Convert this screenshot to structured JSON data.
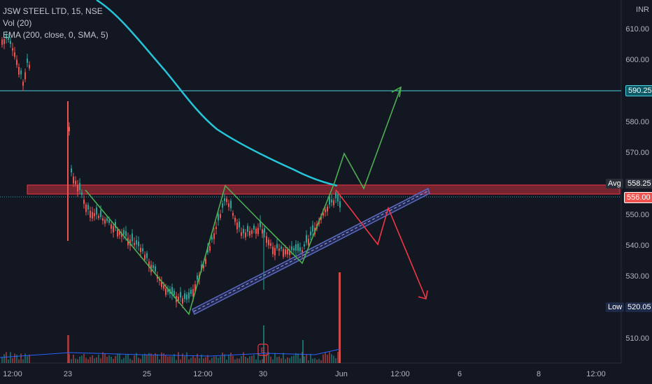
{
  "header": {
    "symbol": "JSW STEEL LTD, 15, NSE",
    "volume_indicator": "Vol (20)",
    "ema_indicator": "EMA (200, close, 0, SMA, 5)"
  },
  "price_axis": {
    "currency": "INR",
    "ticks": [
      "610.00",
      "600.00",
      "590.00",
      "580.00",
      "570.00",
      "560.00",
      "550.00",
      "540.00",
      "530.00",
      "520.00",
      "510.00"
    ]
  },
  "time_axis": {
    "ticks": [
      "12:00",
      "23",
      "25",
      "12:00",
      "30",
      "Jun",
      "12:00",
      "6",
      "8",
      "12:00"
    ]
  },
  "tags": {
    "resistance_price": "590.25",
    "avg_label": "Avg",
    "avg_price": "558.25",
    "last_price": "556.00",
    "low_label": "Low",
    "low_price": "520.05"
  },
  "earnings_marker": "E",
  "colors": {
    "background": "#131722",
    "up": "#26a69a",
    "down": "#ef5350",
    "ema": "#26c6da",
    "resistance_line": "#4dd0e1",
    "bullish_path": "#4caf50",
    "bearish_path": "#f23645",
    "channel": "#3949ab"
  }
}
